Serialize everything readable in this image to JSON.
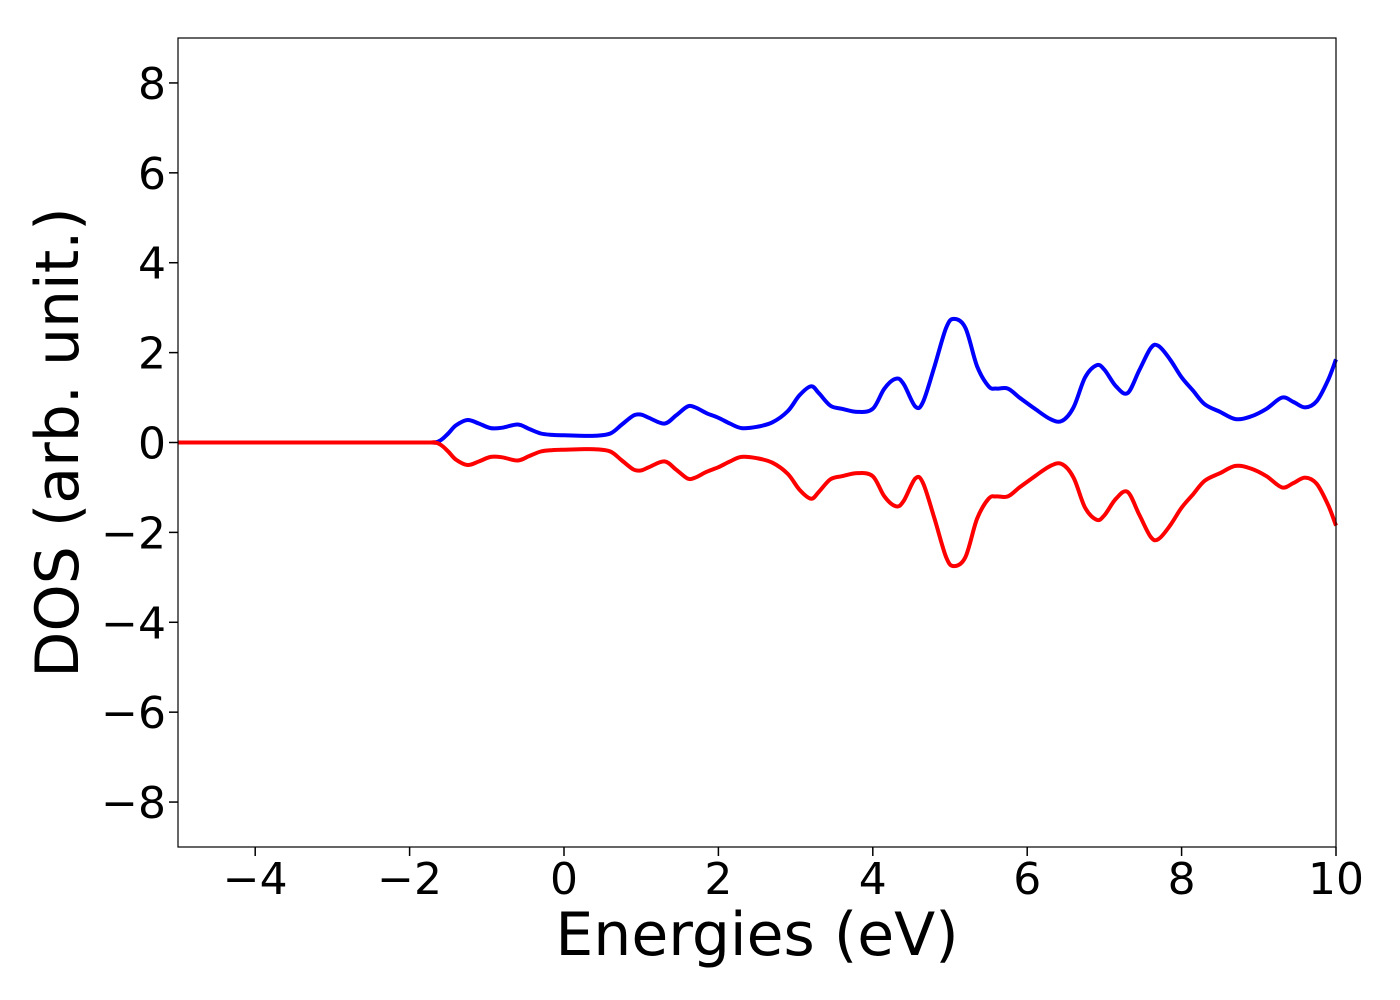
{
  "chart_data": {
    "type": "line",
    "title": "",
    "xlabel": "Energies (eV)",
    "ylabel": "DOS (arb. unit.)",
    "xlim": [
      -5,
      10
    ],
    "ylim": [
      -9,
      9
    ],
    "xticks": [
      -4,
      -2,
      0,
      2,
      4,
      6,
      8,
      10
    ],
    "xtick_labels": [
      "−4",
      "−2",
      "0",
      "2",
      "4",
      "6",
      "8",
      "10"
    ],
    "yticks": [
      8,
      6,
      4,
      2,
      0,
      -2,
      -4,
      -6,
      -8
    ],
    "ytick_labels": [
      "8",
      "6",
      "4",
      "2",
      "0",
      "−2",
      "−4",
      "−6",
      "−8"
    ],
    "grid": false,
    "legend": "none",
    "series": [
      {
        "color": "#0000ff",
        "x": [
          -5,
          -2,
          -1.7,
          -1.6,
          -1.5,
          -1.4,
          -1.25,
          -1.1,
          -0.95,
          -0.8,
          -0.6,
          -0.45,
          -0.3,
          -0.15,
          0,
          0.2,
          0.4,
          0.6,
          0.75,
          0.9,
          1.0,
          1.1,
          1.3,
          1.45,
          1.6,
          1.7,
          1.85,
          2.0,
          2.15,
          2.3,
          2.5,
          2.7,
          2.9,
          3.05,
          3.2,
          3.3,
          3.45,
          3.6,
          3.8,
          4.0,
          4.15,
          4.3,
          4.4,
          4.55,
          4.65,
          4.8,
          4.95,
          5.05,
          5.2,
          5.35,
          5.5,
          5.6,
          5.75,
          5.9,
          6.1,
          6.3,
          6.45,
          6.6,
          6.75,
          6.9,
          7.0,
          7.15,
          7.3,
          7.45,
          7.6,
          7.7,
          7.85,
          8.0,
          8.15,
          8.3,
          8.5,
          8.7,
          8.9,
          9.1,
          9.3,
          9.45,
          9.6,
          9.75,
          9.9,
          10.0
        ],
        "y": [
          0,
          0,
          0,
          0.05,
          0.2,
          0.38,
          0.5,
          0.42,
          0.32,
          0.33,
          0.4,
          0.3,
          0.2,
          0.17,
          0.16,
          0.15,
          0.15,
          0.2,
          0.4,
          0.6,
          0.62,
          0.55,
          0.42,
          0.6,
          0.8,
          0.78,
          0.65,
          0.55,
          0.42,
          0.32,
          0.35,
          0.45,
          0.7,
          1.05,
          1.25,
          1.1,
          0.82,
          0.75,
          0.68,
          0.75,
          1.2,
          1.42,
          1.3,
          0.8,
          0.9,
          1.7,
          2.55,
          2.75,
          2.55,
          1.7,
          1.25,
          1.2,
          1.2,
          1.0,
          0.75,
          0.52,
          0.48,
          0.78,
          1.45,
          1.72,
          1.62,
          1.25,
          1.1,
          1.6,
          2.1,
          2.15,
          1.85,
          1.45,
          1.15,
          0.85,
          0.68,
          0.52,
          0.58,
          0.75,
          1.0,
          0.9,
          0.78,
          0.92,
          1.4,
          1.85
        ]
      },
      {
        "color": "#ff0000",
        "x": [
          -5,
          -2,
          -1.7,
          -1.6,
          -1.5,
          -1.4,
          -1.25,
          -1.1,
          -0.95,
          -0.8,
          -0.6,
          -0.45,
          -0.3,
          -0.15,
          0,
          0.2,
          0.4,
          0.6,
          0.75,
          0.9,
          1.0,
          1.1,
          1.3,
          1.45,
          1.6,
          1.7,
          1.85,
          2.0,
          2.15,
          2.3,
          2.5,
          2.7,
          2.9,
          3.05,
          3.2,
          3.3,
          3.45,
          3.6,
          3.8,
          4.0,
          4.15,
          4.3,
          4.4,
          4.55,
          4.65,
          4.8,
          4.95,
          5.05,
          5.2,
          5.35,
          5.5,
          5.6,
          5.75,
          5.9,
          6.1,
          6.3,
          6.45,
          6.6,
          6.75,
          6.9,
          7.0,
          7.15,
          7.3,
          7.45,
          7.6,
          7.7,
          7.85,
          8.0,
          8.15,
          8.3,
          8.5,
          8.7,
          8.9,
          9.1,
          9.3,
          9.45,
          9.6,
          9.75,
          9.9,
          10.0
        ],
        "y": [
          0,
          0,
          0,
          -0.05,
          -0.2,
          -0.38,
          -0.5,
          -0.42,
          -0.32,
          -0.33,
          -0.4,
          -0.3,
          -0.2,
          -0.17,
          -0.16,
          -0.15,
          -0.15,
          -0.2,
          -0.4,
          -0.6,
          -0.62,
          -0.55,
          -0.42,
          -0.6,
          -0.8,
          -0.78,
          -0.65,
          -0.55,
          -0.42,
          -0.32,
          -0.35,
          -0.45,
          -0.7,
          -1.05,
          -1.25,
          -1.1,
          -0.82,
          -0.75,
          -0.68,
          -0.75,
          -1.2,
          -1.42,
          -1.3,
          -0.8,
          -0.9,
          -1.7,
          -2.55,
          -2.75,
          -2.55,
          -1.7,
          -1.25,
          -1.2,
          -1.2,
          -1.0,
          -0.75,
          -0.52,
          -0.48,
          -0.78,
          -1.45,
          -1.72,
          -1.62,
          -1.25,
          -1.1,
          -1.6,
          -2.1,
          -2.15,
          -1.85,
          -1.45,
          -1.15,
          -0.85,
          -0.68,
          -0.52,
          -0.58,
          -0.75,
          -1.0,
          -0.9,
          -0.78,
          -0.92,
          -1.4,
          -1.85
        ]
      }
    ]
  }
}
